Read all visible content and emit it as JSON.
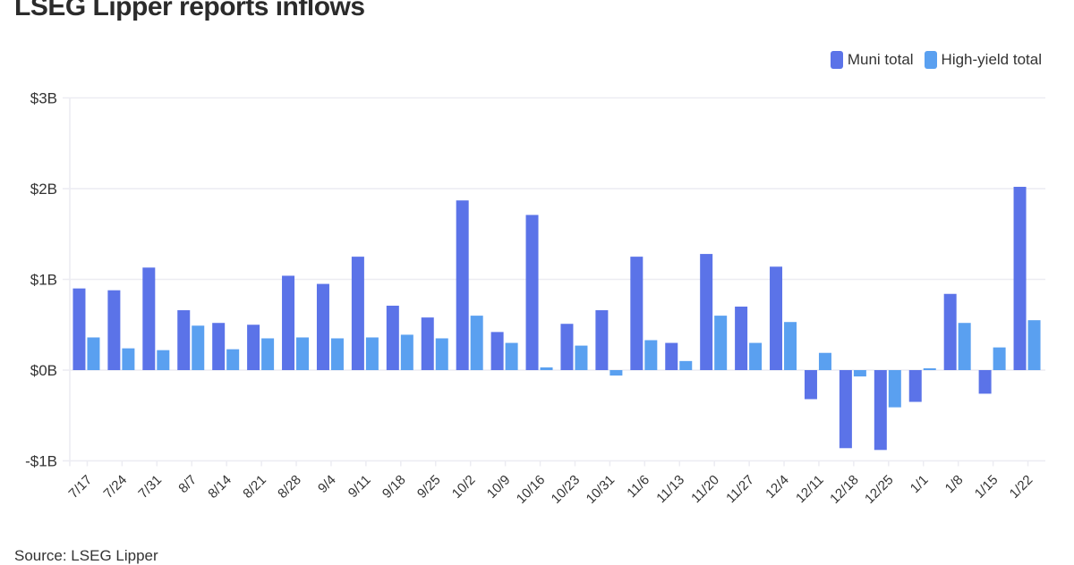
{
  "header": {
    "title": "LSEG Lipper reports inflows"
  },
  "legend": [
    {
      "label": "Muni total",
      "color": "#5b73e8"
    },
    {
      "label": "High-yield total",
      "color": "#5aa0f0"
    }
  ],
  "footer": {
    "source": "Source: LSEG Lipper"
  },
  "chart_data": {
    "type": "bar",
    "title": "LSEG Lipper reports inflows",
    "xlabel": "",
    "ylabel": "",
    "ylim": [
      -1,
      3
    ],
    "yticks": [
      {
        "value": 3,
        "label": "$3B"
      },
      {
        "value": 2,
        "label": "$2B"
      },
      {
        "value": 1,
        "label": "$1B"
      },
      {
        "value": 0,
        "label": "$0B"
      },
      {
        "value": -1,
        "label": "-$1B"
      }
    ],
    "grid": true,
    "legend_position": "top-right",
    "units": "billions USD",
    "categories": [
      "7/17",
      "7/24",
      "7/31",
      "8/7",
      "8/14",
      "8/21",
      "8/28",
      "9/4",
      "9/11",
      "9/18",
      "9/25",
      "10/2",
      "10/9",
      "10/16",
      "10/23",
      "10/31",
      "11/6",
      "11/13",
      "11/20",
      "11/27",
      "12/4",
      "12/11",
      "12/18",
      "12/25",
      "1/1",
      "1/8",
      "1/15",
      "1/22"
    ],
    "series": [
      {
        "name": "Muni total",
        "color": "#5b73e8",
        "values": [
          0.9,
          0.88,
          1.13,
          0.66,
          0.52,
          0.5,
          1.04,
          0.95,
          1.25,
          0.71,
          0.58,
          1.87,
          0.42,
          1.71,
          0.51,
          0.66,
          1.25,
          0.3,
          1.28,
          0.7,
          1.14,
          -0.32,
          -0.86,
          -0.88,
          -0.35,
          0.84,
          -0.26,
          2.02
        ]
      },
      {
        "name": "High-yield total",
        "color": "#5aa0f0",
        "values": [
          0.36,
          0.24,
          0.22,
          0.49,
          0.23,
          0.35,
          0.36,
          0.35,
          0.36,
          0.39,
          0.35,
          0.6,
          0.3,
          0.03,
          0.27,
          -0.06,
          0.33,
          0.1,
          0.6,
          0.3,
          0.53,
          0.19,
          -0.07,
          -0.41,
          0.02,
          0.52,
          0.25,
          0.55
        ]
      }
    ]
  }
}
